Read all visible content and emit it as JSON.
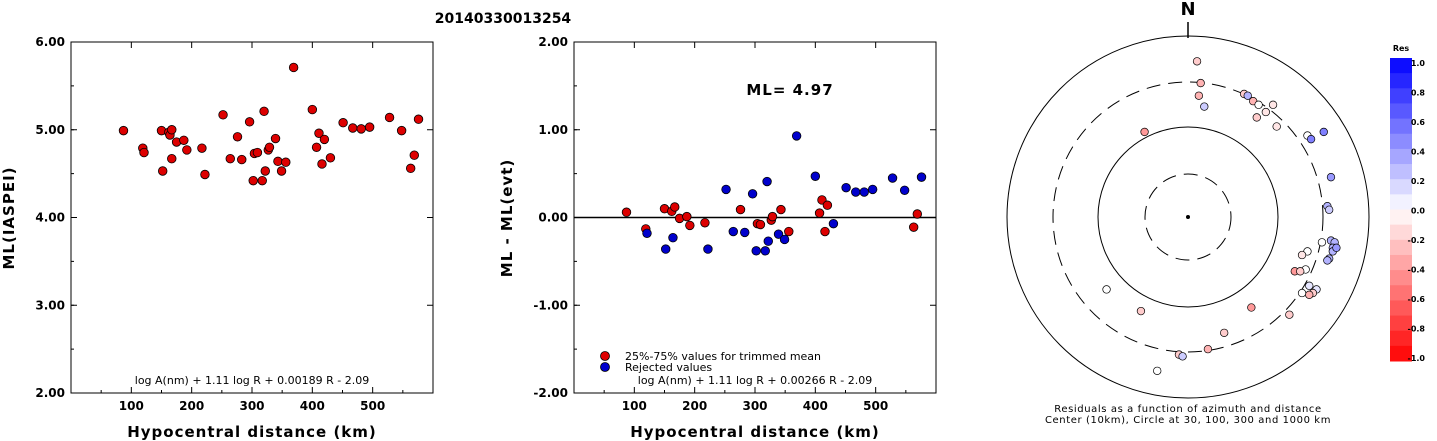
{
  "title": "20140330013254",
  "chart_data": [
    {
      "type": "scatter",
      "xlabel": "Hypocentral distance (km)",
      "ylabel": "ML(IASPEI)",
      "xlim": [
        0,
        600
      ],
      "ylim": [
        2.0,
        6.0
      ],
      "xticks": [
        "100",
        "200",
        "300",
        "400",
        "500"
      ],
      "yticks": [
        "2.00",
        "3.00",
        "4.00",
        "5.00",
        "6.00"
      ],
      "formula": "log A(nm) + 1.11 log R + 0.00189 R - 2.09",
      "series": [
        {
          "color": "#dd0000",
          "points": [
            [
              87,
              4.99
            ],
            [
              119,
              4.79
            ],
            [
              121,
              4.74
            ],
            [
              150,
              4.99
            ],
            [
              152,
              4.53
            ],
            [
              162,
              4.97
            ],
            [
              164,
              4.94
            ],
            [
              167,
              5.0
            ],
            [
              167,
              4.67
            ],
            [
              175,
              4.86
            ],
            [
              187,
              4.88
            ],
            [
              192,
              4.77
            ],
            [
              217,
              4.79
            ],
            [
              222,
              4.49
            ],
            [
              252,
              5.17
            ],
            [
              264,
              4.67
            ],
            [
              276,
              4.92
            ],
            [
              283,
              4.66
            ],
            [
              296,
              5.09
            ],
            [
              302,
              4.42
            ],
            [
              304,
              4.73
            ],
            [
              309,
              4.74
            ],
            [
              317,
              4.42
            ],
            [
              320,
              5.21
            ],
            [
              322,
              4.53
            ],
            [
              327,
              4.77
            ],
            [
              329,
              4.8
            ],
            [
              339,
              4.9
            ],
            [
              343,
              4.64
            ],
            [
              349,
              4.53
            ],
            [
              356,
              4.63
            ],
            [
              369,
              5.71
            ],
            [
              400,
              5.23
            ],
            [
              407,
              4.8
            ],
            [
              411,
              4.96
            ],
            [
              416,
              4.61
            ],
            [
              420,
              4.89
            ],
            [
              430,
              4.68
            ],
            [
              451,
              5.08
            ],
            [
              467,
              5.02
            ],
            [
              481,
              5.01
            ],
            [
              495,
              5.03
            ],
            [
              528,
              5.14
            ],
            [
              548,
              4.99
            ],
            [
              563,
              4.56
            ],
            [
              569,
              4.71
            ],
            [
              576,
              5.12
            ]
          ]
        }
      ]
    },
    {
      "type": "scatter",
      "xlabel": "Hypocentral distance (km)",
      "ylabel": "ML - ML(evt)",
      "xlim": [
        0,
        600
      ],
      "ylim": [
        -2.0,
        2.0
      ],
      "xticks": [
        "100",
        "200",
        "300",
        "400",
        "500"
      ],
      "yticks": [
        "-2.00",
        "-1.00",
        "0.00",
        "1.00",
        "2.00"
      ],
      "annotation": "ML= 4.97",
      "hline": 0.0,
      "legend": [
        "25%-75% values for trimmed mean",
        "Rejected values"
      ],
      "formula": "log A(nm) + 1.11 log R + 0.00266 R - 2.09",
      "series": [
        {
          "name": "25%-75% values for trimmed mean",
          "color": "#dd0000",
          "points": [
            [
              87,
              0.06
            ],
            [
              119,
              -0.13
            ],
            [
              150,
              0.1
            ],
            [
              162,
              0.07
            ],
            [
              167,
              0.12
            ],
            [
              175,
              -0.01
            ],
            [
              187,
              0.01
            ],
            [
              192,
              -0.09
            ],
            [
              217,
              -0.06
            ],
            [
              276,
              0.09
            ],
            [
              304,
              -0.07
            ],
            [
              309,
              -0.08
            ],
            [
              327,
              -0.03
            ],
            [
              329,
              0.01
            ],
            [
              343,
              0.09
            ],
            [
              356,
              -0.16
            ],
            [
              407,
              0.05
            ],
            [
              411,
              0.2
            ],
            [
              416,
              -0.16
            ],
            [
              420,
              0.14
            ],
            [
              563,
              -0.11
            ],
            [
              569,
              0.04
            ]
          ]
        },
        {
          "name": "Rejected values",
          "color": "#0000cc",
          "points": [
            [
              121,
              -0.18
            ],
            [
              152,
              -0.36
            ],
            [
              164,
              -0.23
            ],
            [
              222,
              -0.36
            ],
            [
              252,
              0.32
            ],
            [
              264,
              -0.16
            ],
            [
              283,
              -0.17
            ],
            [
              296,
              0.27
            ],
            [
              302,
              -0.38
            ],
            [
              317,
              -0.38
            ],
            [
              320,
              0.41
            ],
            [
              322,
              -0.27
            ],
            [
              339,
              -0.19
            ],
            [
              349,
              -0.25
            ],
            [
              369,
              0.93
            ],
            [
              400,
              0.47
            ],
            [
              430,
              -0.07
            ],
            [
              451,
              0.34
            ],
            [
              467,
              0.29
            ],
            [
              481,
              0.29
            ],
            [
              495,
              0.32
            ],
            [
              528,
              0.45
            ],
            [
              548,
              0.31
            ],
            [
              576,
              0.46
            ]
          ]
        }
      ]
    },
    {
      "type": "scatter",
      "subtype": "polar",
      "north_label": "N",
      "caption_line1": "Residuals as a function of azimuth and distance",
      "caption_line2": "Center (10km), Circle at 30, 100, 300 and 1000 km",
      "colorbar_title": "Res",
      "colorbar_ticks": [
        "1.0",
        "0.8",
        "0.6",
        "0.4",
        "0.2",
        "0.0",
        "-0.2",
        "-0.4",
        "-0.6",
        "-0.8",
        "-1.0"
      ],
      "note": "points given as [x_east_offset, y_north_offset] in normalized units of the outer circle radius, with residual value",
      "points": [
        [
          0.05,
          0.86,
          -0.2
        ],
        [
          0.07,
          0.74,
          -0.3
        ],
        [
          0.06,
          0.67,
          -0.3
        ],
        [
          0.09,
          0.61,
          0.2
        ],
        [
          -0.24,
          0.47,
          -0.4
        ],
        [
          0.31,
          0.68,
          -0.2
        ],
        [
          0.33,
          0.67,
          0.3
        ],
        [
          0.36,
          0.64,
          -0.3
        ],
        [
          0.39,
          0.62,
          0.0
        ],
        [
          0.43,
          0.58,
          -0.1
        ],
        [
          0.38,
          0.55,
          -0.2
        ],
        [
          0.47,
          0.62,
          -0.1
        ],
        [
          0.49,
          0.5,
          -0.1
        ],
        [
          0.66,
          0.45,
          0.0
        ],
        [
          0.68,
          0.43,
          0.5
        ],
        [
          0.75,
          0.47,
          0.5
        ],
        [
          0.79,
          0.22,
          0.4
        ],
        [
          0.77,
          0.06,
          0.3
        ],
        [
          0.78,
          0.04,
          0.2
        ],
        [
          0.74,
          -0.14,
          0.0
        ],
        [
          0.79,
          -0.13,
          0.3
        ],
        [
          0.81,
          -0.14,
          0.3
        ],
        [
          0.8,
          -0.17,
          0.3
        ],
        [
          0.8,
          -0.19,
          0.3
        ],
        [
          0.82,
          -0.17,
          0.4
        ],
        [
          0.78,
          -0.23,
          0.3
        ],
        [
          0.77,
          -0.24,
          0.3
        ],
        [
          0.66,
          -0.19,
          0.0
        ],
        [
          0.63,
          -0.21,
          -0.1
        ],
        [
          0.65,
          -0.29,
          0.0
        ],
        [
          0.59,
          -0.3,
          -0.4
        ],
        [
          0.62,
          -0.3,
          -0.2
        ],
        [
          0.67,
          -0.38,
          0.1
        ],
        [
          0.71,
          -0.4,
          0.1
        ],
        [
          0.69,
          -0.42,
          -0.2
        ],
        [
          0.67,
          -0.43,
          -0.3
        ],
        [
          0.63,
          -0.42,
          0.0
        ],
        [
          0.56,
          -0.54,
          -0.2
        ],
        [
          0.35,
          -0.5,
          -0.4
        ],
        [
          0.2,
          -0.64,
          -0.2
        ],
        [
          -0.45,
          -0.4,
          0.0
        ],
        [
          -0.26,
          -0.52,
          -0.2
        ],
        [
          0.11,
          -0.73,
          -0.3
        ],
        [
          -0.05,
          -0.76,
          -0.2
        ],
        [
          -0.03,
          -0.77,
          0.2
        ],
        [
          -0.17,
          -0.85,
          0.0
        ]
      ]
    }
  ]
}
